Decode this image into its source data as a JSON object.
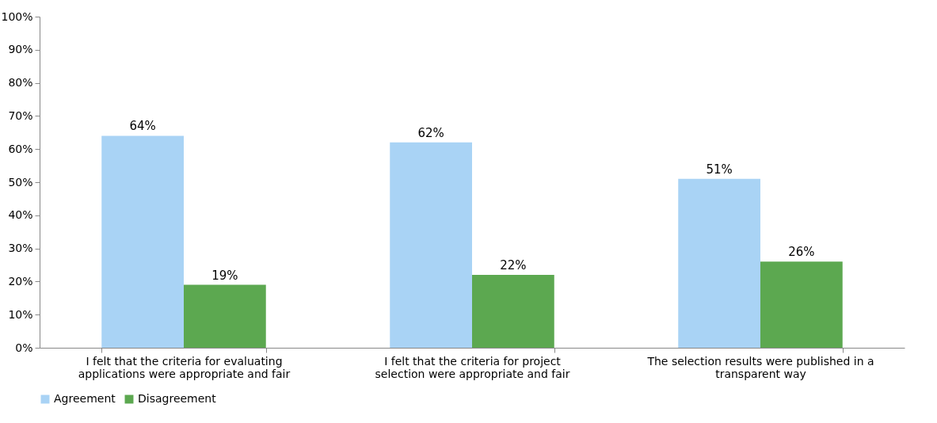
{
  "chart_data": {
    "type": "bar",
    "categories": [
      "I felt that the criteria for evaluating applications were appropriate and fair",
      "I felt that the criteria for project selection were appropriate and fair",
      "The selection results were published in a transparent way"
    ],
    "series": [
      {
        "name": "Agreement",
        "color": "#a9d3f5",
        "values": [
          64,
          62,
          51
        ],
        "value_labels": [
          "64%",
          "62%",
          "51%"
        ]
      },
      {
        "name": "Disagreement",
        "color": "#5ca850",
        "values": [
          19,
          22,
          26
        ],
        "value_labels": [
          "19%",
          "22%",
          "26%"
        ]
      }
    ],
    "ylim": [
      0,
      100
    ],
    "yticks": [
      {
        "value": 0,
        "label": "0%"
      },
      {
        "value": 10,
        "label": "10%"
      },
      {
        "value": 20,
        "label": "20%"
      },
      {
        "value": 30,
        "label": "30%"
      },
      {
        "value": 40,
        "label": "40%"
      },
      {
        "value": 50,
        "label": "50%"
      },
      {
        "value": 60,
        "label": "60%"
      },
      {
        "value": 70,
        "label": "70%"
      },
      {
        "value": 80,
        "label": "80%"
      },
      {
        "value": 90,
        "label": "90%"
      },
      {
        "value": 100,
        "label": "100%"
      }
    ],
    "grid": false,
    "legend": "bottom"
  }
}
